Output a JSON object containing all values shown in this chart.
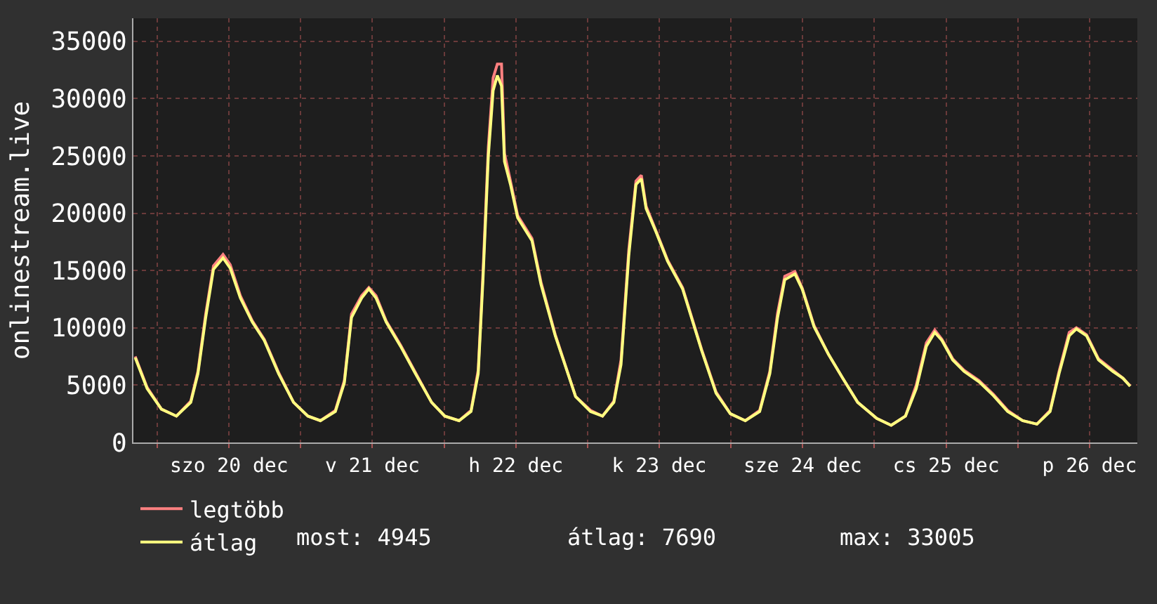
{
  "chart_data": {
    "type": "line",
    "ylabel": "onlinestream.live",
    "x": [
      "--12-19T20:18",
      "--12-19T22:18",
      "--12-20T00:42",
      "--12-20T03:12",
      "--12-20T05:36",
      "--12-20T06:48",
      "--12-20T08:06",
      "--12-20T09:24",
      "--12-20T11:00",
      "--12-20T12:12",
      "--12-20T13:54",
      "--12-20T15:54",
      "--12-20T17:54",
      "--12-20T20:18",
      "--12-20T22:48",
      "--12-21T01:12",
      "--12-21T03:18",
      "--12-21T05:48",
      "--12-21T07:18",
      "--12-21T08:30",
      "--12-21T10:12",
      "--12-21T11:24",
      "--12-21T12:36",
      "--12-21T14:18",
      "--12-21T16:42",
      "--12-21T19:12",
      "--12-21T21:54",
      "--12-22T00:06",
      "--12-22T02:30",
      "--12-22T04:30",
      "--12-22T05:42",
      "--12-22T06:30",
      "--12-22T07:24",
      "--12-22T08:12",
      "--12-22T08:54",
      "--12-22T09:36",
      "--12-22T10:06",
      "--12-22T11:06",
      "--12-22T12:18",
      "--12-22T14:42",
      "--12-22T16:12",
      "--12-22T18:36",
      "--12-22T22:00",
      "--12-23T00:30",
      "--12-23T02:30",
      "--12-23T04:24",
      "--12-23T05:36",
      "--12-23T06:54",
      "--12-23T08:06",
      "--12-23T09:00",
      "--12-23T09:48",
      "--12-23T11:30",
      "--12-23T13:24",
      "--12-23T15:54",
      "--12-23T19:06",
      "--12-23T21:30",
      "--12-23T23:54",
      "--12-24T02:24",
      "--12-24T04:48",
      "--12-24T06:30",
      "--12-24T07:48",
      "--12-24T09:00",
      "--12-24T10:42",
      "--12-24T11:54",
      "--12-24T13:54",
      "--12-24T16:18",
      "--12-24T18:42",
      "--12-24T21:12",
      "--12-25T00:24",
      "--12-25T02:48",
      "--12-25T05:12",
      "--12-25T07:00",
      "--12-25T08:42",
      "--12-25T10:06",
      "--12-25T11:18",
      "--12-25T13:06",
      "--12-25T15:00",
      "--12-25T17:30",
      "--12-25T19:54",
      "--12-25T22:18",
      "--12-26T00:48",
      "--12-26T03:12",
      "--12-26T05:24",
      "--12-26T06:54",
      "--12-26T08:36",
      "--12-26T09:48",
      "--12-26T11:30",
      "--12-26T13:30",
      "--12-26T15:54",
      "--12-26T17:36",
      "--12-26T18:48"
    ],
    "series": [
      {
        "name": "legtöbb",
        "color": "#ff8080",
        "values": [
          7500,
          4800,
          2900,
          2300,
          3600,
          6200,
          11200,
          15400,
          16400,
          15500,
          12800,
          10600,
          9000,
          6100,
          3500,
          2300,
          1900,
          2800,
          5400,
          11200,
          12800,
          13500,
          12800,
          10600,
          8500,
          6100,
          3500,
          2300,
          1900,
          2800,
          6300,
          14800,
          25800,
          31800,
          33005,
          33000,
          25200,
          22800,
          19800,
          17800,
          14000,
          9400,
          4000,
          2800,
          2300,
          3600,
          7200,
          16800,
          22800,
          23300,
          20600,
          18400,
          15900,
          13500,
          8100,
          4400,
          2500,
          1900,
          2800,
          6200,
          11300,
          14500,
          14900,
          13500,
          10200,
          7700,
          5600,
          3500,
          2100,
          1500,
          2300,
          5000,
          8700,
          9800,
          9000,
          7300,
          6300,
          5400,
          4200,
          2800,
          1900,
          1600,
          2800,
          6200,
          9600,
          10000,
          9400,
          7300,
          6300,
          5600,
          4945
        ]
      },
      {
        "name": "átlag",
        "color": "#ffff80",
        "values": [
          7400,
          4700,
          2900,
          2300,
          3500,
          6000,
          10900,
          15100,
          16100,
          15200,
          12600,
          10500,
          8900,
          6000,
          3500,
          2300,
          1900,
          2700,
          5200,
          10900,
          12600,
          13400,
          12600,
          10500,
          8400,
          6000,
          3500,
          2300,
          1900,
          2700,
          6000,
          14200,
          25000,
          30700,
          32000,
          31100,
          24500,
          22500,
          19600,
          17600,
          13800,
          9300,
          4000,
          2700,
          2300,
          3500,
          6800,
          16300,
          22500,
          23000,
          20400,
          18300,
          15800,
          13400,
          8000,
          4300,
          2500,
          1900,
          2700,
          6000,
          10900,
          14200,
          14700,
          13400,
          10100,
          7700,
          5600,
          3500,
          2100,
          1500,
          2300,
          4700,
          8400,
          9600,
          8900,
          7200,
          6200,
          5300,
          4100,
          2700,
          1900,
          1600,
          2700,
          6000,
          9300,
          9900,
          9300,
          7200,
          6200,
          5600,
          4900
        ]
      }
    ],
    "xlim": [
      "--12-19T20:00",
      "--12-26T20:00"
    ],
    "xticks": [
      {
        "value": "--12-20T00:00",
        "label": null
      },
      {
        "value": "--12-20T12:00",
        "label": "szo 20 dec"
      },
      {
        "value": "--12-21T00:00",
        "label": null
      },
      {
        "value": "--12-21T12:00",
        "label": "v 21 dec"
      },
      {
        "value": "--12-22T00:00",
        "label": null
      },
      {
        "value": "--12-22T12:00",
        "label": "h 22 dec"
      },
      {
        "value": "--12-23T00:00",
        "label": null
      },
      {
        "value": "--12-23T12:00",
        "label": "k 23 dec"
      },
      {
        "value": "--12-24T00:00",
        "label": null
      },
      {
        "value": "--12-24T12:00",
        "label": "sze 24 dec"
      },
      {
        "value": "--12-25T00:00",
        "label": null
      },
      {
        "value": "--12-25T12:00",
        "label": "cs 25 dec"
      },
      {
        "value": "--12-26T00:00",
        "label": null
      },
      {
        "value": "--12-26T12:00",
        "label": "p 26 dec"
      }
    ],
    "ylim": [
      0,
      37000
    ],
    "yticks": [
      0,
      5000,
      10000,
      15000,
      20000,
      25000,
      30000,
      35000
    ],
    "grid": true,
    "legend": "bottom left",
    "annotations": [
      "most: 4945",
      "átlag: 7690",
      "max: 33005"
    ]
  }
}
